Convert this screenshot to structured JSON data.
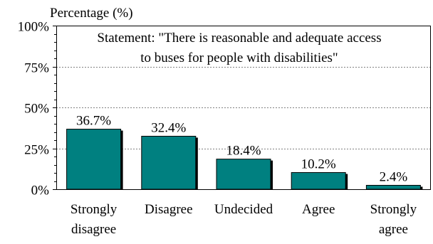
{
  "chart_data": {
    "type": "bar",
    "ylabel": "Percentage (%)",
    "annotation_lines": [
      "Statement: \"There is reasonable and adequate access",
      "to buses for people with disabilities\""
    ],
    "categories": [
      [
        "Strongly",
        "disagree"
      ],
      [
        "Disagree"
      ],
      [
        "Undecided"
      ],
      [
        "Agree"
      ],
      [
        "Strongly",
        "agree"
      ]
    ],
    "values": [
      36.7,
      32.4,
      18.4,
      10.2,
      2.4
    ],
    "data_labels": [
      "36.7%",
      "32.4%",
      "18.4%",
      "10.2%",
      "2.4%"
    ],
    "ylim": [
      0,
      100
    ],
    "yticks": [
      0,
      25,
      50,
      75,
      100
    ],
    "ytick_labels": [
      "0%",
      "25%",
      "50%",
      "75%",
      "100%"
    ],
    "grid": "dotted horizontal",
    "colors": {
      "bar": "#008080",
      "bar_outline": "#000000",
      "grid": "#808080"
    }
  }
}
